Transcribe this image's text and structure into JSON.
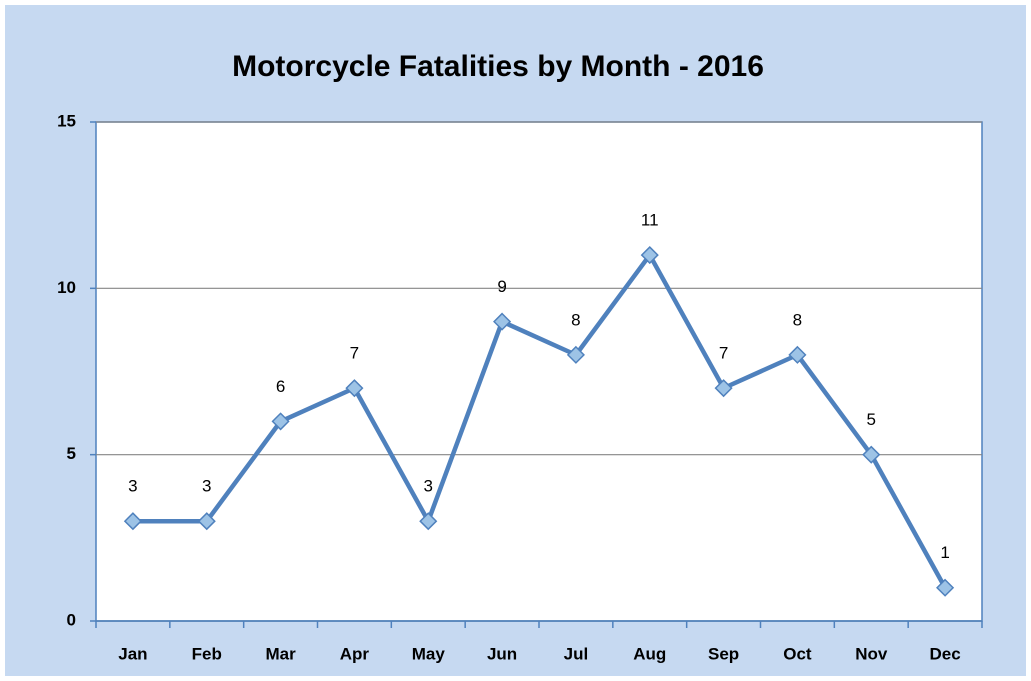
{
  "chart_data": {
    "type": "line",
    "title": "Motorcycle Fatalities by Month - 2016",
    "categories": [
      "Jan",
      "Feb",
      "Mar",
      "Apr",
      "May",
      "Jun",
      "Jul",
      "Aug",
      "Sep",
      "Oct",
      "Nov",
      "Dec"
    ],
    "values": [
      3,
      3,
      6,
      7,
      3,
      9,
      8,
      11,
      7,
      8,
      5,
      1
    ],
    "color": "#4f81bd",
    "marker_color": "#9dc3e6",
    "ylim": [
      0,
      15
    ],
    "yticks": [
      0,
      5,
      10,
      15
    ],
    "grid": true
  }
}
